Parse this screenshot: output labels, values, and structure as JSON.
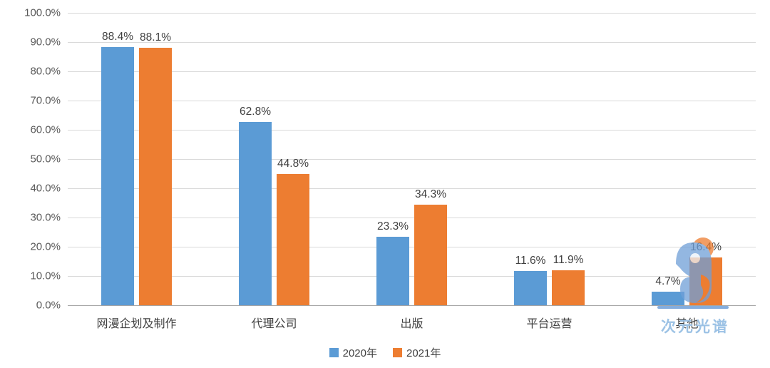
{
  "chart_data": {
    "type": "bar",
    "title": "",
    "categories": [
      "网漫企划及制作",
      "代理公司",
      "出版",
      "平台运营",
      "其他"
    ],
    "series": [
      {
        "name": "2020年",
        "color": "#5b9bd5",
        "values": [
          88.4,
          62.8,
          23.3,
          11.6,
          4.7
        ]
      },
      {
        "name": "2021年",
        "color": "#ed7d31",
        "values": [
          88.1,
          44.8,
          34.3,
          11.9,
          16.4
        ]
      }
    ],
    "value_label_suffix": "%",
    "xlabel": "",
    "ylabel": "",
    "ylim": [
      0,
      100
    ],
    "y_ticks": [
      "0.0%",
      "10.0%",
      "20.0%",
      "30.0%",
      "40.0%",
      "50.0%",
      "60.0%",
      "70.0%",
      "80.0%",
      "90.0%",
      "100.0%"
    ],
    "grid": true,
    "legend_position": "bottom"
  },
  "watermark": {
    "text": "次元光谱",
    "color": "#9cc2e5"
  }
}
